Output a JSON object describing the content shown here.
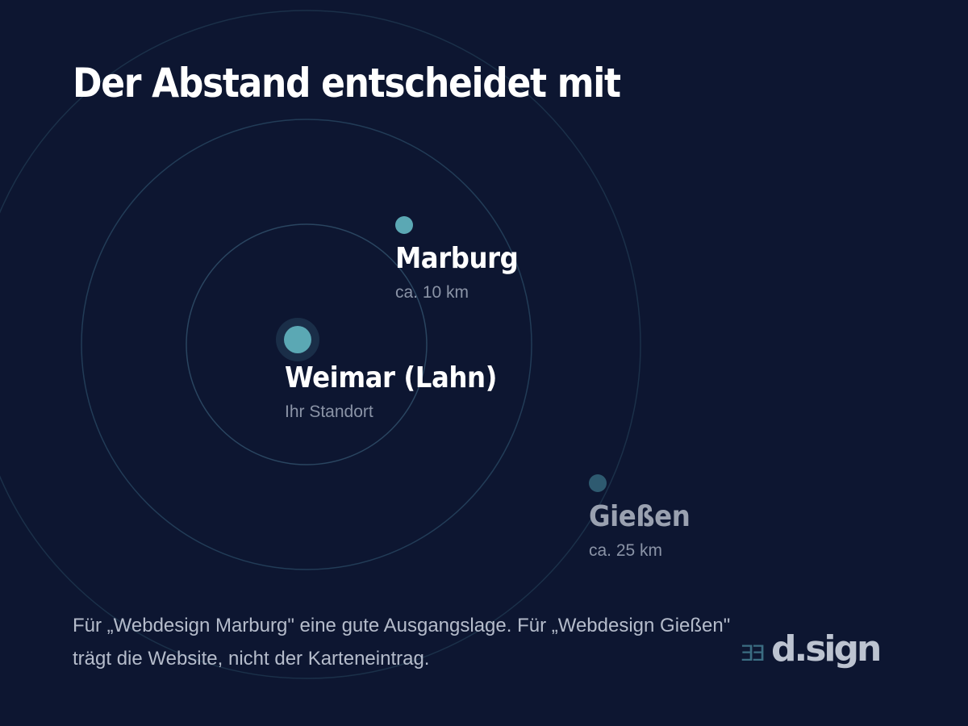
{
  "title": "Der Abstand entscheidet mit",
  "places": {
    "weimar": {
      "name": "Weimar (Lahn)",
      "subtitle": "Ihr Standort"
    },
    "marburg": {
      "name": "Marburg",
      "subtitle": "ca. 10 km"
    },
    "giessen": {
      "name": "Gießen",
      "subtitle": "ca. 25 km"
    }
  },
  "footer": "Für „Webdesign Marburg\" eine gute Ausgangslage. Für „Webdesign Gießen\" trägt die Website, nicht der Karteneintrag.",
  "logo": {
    "mark": "ƎƎ",
    "text": "d.sign"
  },
  "colors": {
    "background": "#0d1631",
    "ring": "#1e3550",
    "primary_dot": "#5ba8b4",
    "secondary_dot": "#2e5a70",
    "text_primary": "#ffffff",
    "text_muted": "#8a93a6"
  }
}
